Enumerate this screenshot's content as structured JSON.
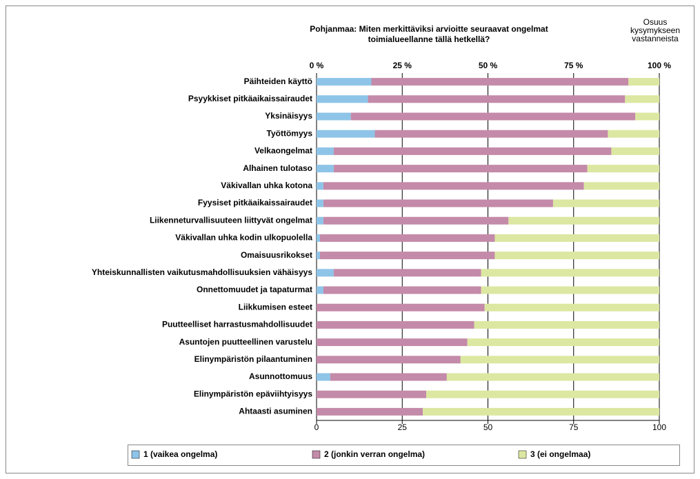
{
  "chart_data": {
    "type": "stacked-barh",
    "title": [
      "Pohjanmaa: Miten merkittäviksi arvioitte seuraavat ongelmat",
      "toimialueellanne tällä hetkellä?"
    ],
    "annotation": [
      "Osuus",
      "kysymykseen",
      "vastanneista"
    ],
    "categories": [
      "Päihteiden käyttö",
      "Psyykkiset pitkäaikaissairaudet",
      "Yksinäisyys",
      "Työttömyys",
      "Velkaongelmat",
      "Alhainen tulotaso",
      "Väkivallan uhka kotona",
      "Fyysiset pitkäaikaissairaudet",
      "Liikenneturvallisuuteen liittyvät ongelmat",
      "Väkivallan uhka kodin ulkopuolella",
      "Omaisuusrikokset",
      "Yhteiskunnallisten vaikutusmahdollisuuksien vähäisyys",
      "Onnettomuudet ja tapaturmat",
      "Liikkumisen esteet",
      "Puutteelliset harrastusmahdollisuudet",
      "Asuntojen puutteellinen varustelu",
      "Elinympäristön pilaantuminen",
      "Asunnottomuus",
      "Elinympäristön epäviihtyisyys",
      "Ahtaasti asuminen"
    ],
    "series": [
      {
        "name": "1 (vaikea ongelma)",
        "color": "#8ec4e8",
        "values": [
          16,
          15,
          10,
          17,
          5,
          5,
          2,
          2,
          2,
          1,
          1,
          5,
          2,
          0,
          0,
          0,
          0,
          4,
          0,
          0
        ]
      },
      {
        "name": "2 (jonkin verran ongelma)",
        "color": "#c48aa9",
        "values": [
          75,
          75,
          83,
          68,
          81,
          74,
          76,
          67,
          54,
          51,
          51,
          43,
          46,
          49,
          46,
          44,
          42,
          34,
          32,
          31
        ]
      },
      {
        "name": "3 (ei ongelmaa)",
        "color": "#dce7a1",
        "values": [
          9,
          10,
          7,
          15,
          14,
          21,
          22,
          31,
          44,
          48,
          48,
          52,
          52,
          51,
          54,
          56,
          58,
          62,
          68,
          69
        ]
      }
    ],
    "xlim": [
      0,
      100
    ],
    "xticks": [
      {
        "value": 0,
        "label": "0 %"
      },
      {
        "value": 25,
        "label": "25 %"
      },
      {
        "value": 50,
        "label": "50 %"
      },
      {
        "value": 75,
        "label": "75 %"
      },
      {
        "value": 100,
        "label": "100 %"
      }
    ],
    "xticks_bottom": [
      0,
      25,
      50,
      75,
      100
    ],
    "grid": true
  }
}
